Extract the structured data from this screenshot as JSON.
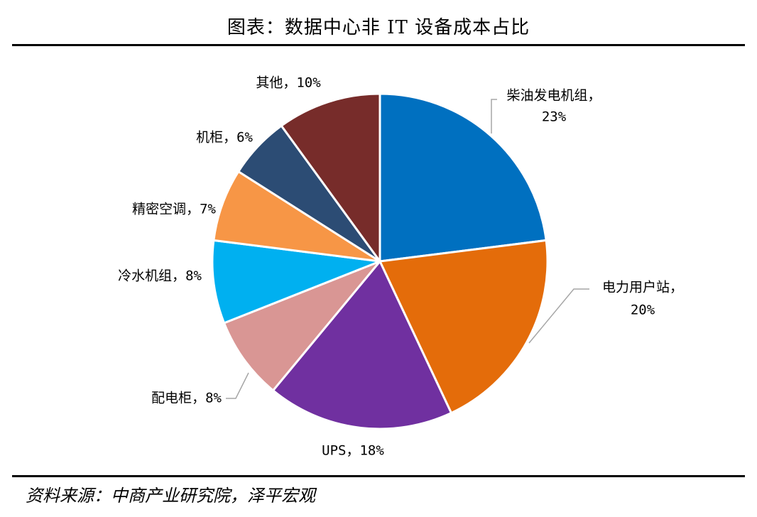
{
  "title": "图表：数据中心非 IT 设备成本占比",
  "source": "资料来源：中商产业研究院，泽平宏观",
  "chart_data": {
    "type": "pie",
    "title": "图表：数据中心非 IT 设备成本占比",
    "start_angle": "12 o'clock",
    "direction": "clockwise",
    "slices": [
      {
        "name": "柴油发电机组",
        "value": 23,
        "label_lines": [
          "柴油发电机组，",
          "23%"
        ],
        "color": "#0070C0"
      },
      {
        "name": "电力用户站",
        "value": 20,
        "label_lines": [
          "电力用户站，",
          "20%"
        ],
        "color": "#E46C0A"
      },
      {
        "name": "UPS",
        "value": 18,
        "label_lines": [
          "UPS，18%"
        ],
        "color": "#7030A0"
      },
      {
        "name": "配电柜",
        "value": 8,
        "label_lines": [
          "配电柜，8%"
        ],
        "color": "#D99694"
      },
      {
        "name": "冷水机组",
        "value": 8,
        "label_lines": [
          "冷水机组，8%"
        ],
        "color": "#00B0F0"
      },
      {
        "name": "精密空调",
        "value": 7,
        "label_lines": [
          "精密空调，7%"
        ],
        "color": "#F79646"
      },
      {
        "name": "机柜",
        "value": 6,
        "label_lines": [
          "机柜，6%"
        ],
        "color": "#2C4C74"
      },
      {
        "name": "其他",
        "value": 10,
        "label_lines": [
          "其他，10%"
        ],
        "color": "#772C2A"
      }
    ]
  }
}
